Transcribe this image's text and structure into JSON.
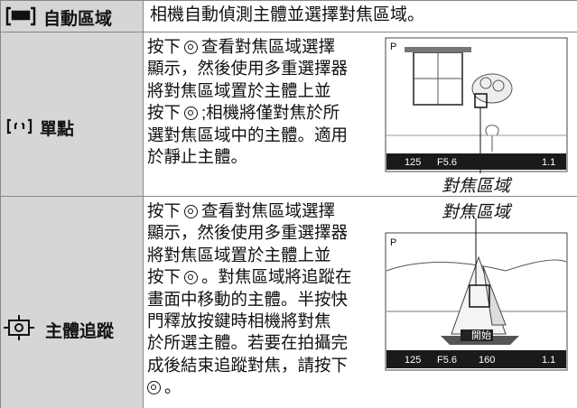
{
  "rows": [
    {
      "label": "自動區域",
      "description": "相機自動偵測主體並選擇對焦區域。"
    },
    {
      "label": "單點",
      "lines": [
        [
          "按下",
          "查看對焦區域選擇"
        ],
        [
          "顯示，然後使用多重選擇器"
        ],
        [
          "將對焦區域置於主體上並"
        ],
        [
          "按下",
          ";相機將僅對焦於所"
        ],
        [
          "選對焦區域中的主體。適用"
        ],
        [
          "於靜止主體。"
        ]
      ],
      "figure": {
        "caption": "對焦區域",
        "screen": [
          "P",
          "125",
          "F5.6",
          "1.1"
        ]
      }
    },
    {
      "label": "主體追蹤",
      "lines": [
        [
          "按下",
          "查看對焦區域選擇"
        ],
        [
          "顯示，然後使用多重選擇器"
        ],
        [
          "將對焦區域置於主體上並"
        ],
        [
          "按下",
          "。對焦區域將追蹤在"
        ],
        [
          "畫面中移動的主體。半按快"
        ],
        [
          "門釋放按鍵時相機將對焦"
        ],
        [
          "於所選主體。若要在拍攝完"
        ],
        [
          "成後結束追蹤對焦，請按下"
        ],
        [
          "。"
        ]
      ],
      "figure": {
        "caption": "對焦區域",
        "screen": [
          "P",
          "125",
          "F5.6",
          "160",
          "1.1",
          "開始"
        ]
      }
    }
  ]
}
